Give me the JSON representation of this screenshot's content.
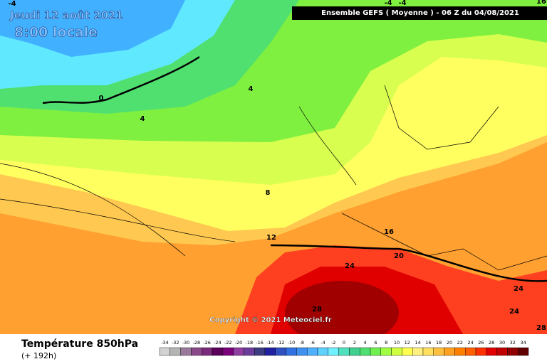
{
  "header": {
    "title": "Jeudi 12 août 2021",
    "subtitle": "8:00 locale",
    "run_info": "Ensemble GEFS  ( Moyenne )  -  06 Z du 04/08/2021"
  },
  "map": {
    "contour_labels": [
      -4,
      0,
      4,
      4,
      8,
      12,
      16,
      20,
      24,
      24,
      24,
      28,
      28,
      -4,
      -4,
      16
    ],
    "copyright": "Copyright © 2021 Meteociel.fr"
  },
  "footer": {
    "variable": "Température 850hPa",
    "lead_time": "(+ 192h)"
  },
  "legend": {
    "values": [
      -34,
      -32,
      -30,
      -28,
      -26,
      -24,
      -22,
      -20,
      -18,
      -16,
      -14,
      -12,
      -10,
      -8,
      -6,
      -4,
      -2,
      0,
      2,
      4,
      6,
      8,
      10,
      12,
      14,
      16,
      18,
      20,
      22,
      24,
      26,
      28,
      30,
      32,
      34
    ],
    "colors": [
      "#d2d2d2",
      "#b4b4b4",
      "#9a7a9a",
      "#8a4a8a",
      "#7a2a7a",
      "#5a005a",
      "#7a007a",
      "#8e3ea0",
      "#6a3d9a",
      "#3c3c80",
      "#2020a0",
      "#3050c0",
      "#3070e0",
      "#4090f0",
      "#50b0ff",
      "#60d0ff",
      "#70f0ff",
      "#50e0c0",
      "#40d090",
      "#50e070",
      "#70f050",
      "#a0ff40",
      "#d0ff40",
      "#ffff50",
      "#fff080",
      "#ffe060",
      "#ffc040",
      "#ffa020",
      "#ff8000",
      "#ff6000",
      "#ff3000",
      "#e00000",
      "#c00000",
      "#900000",
      "#600000"
    ]
  }
}
